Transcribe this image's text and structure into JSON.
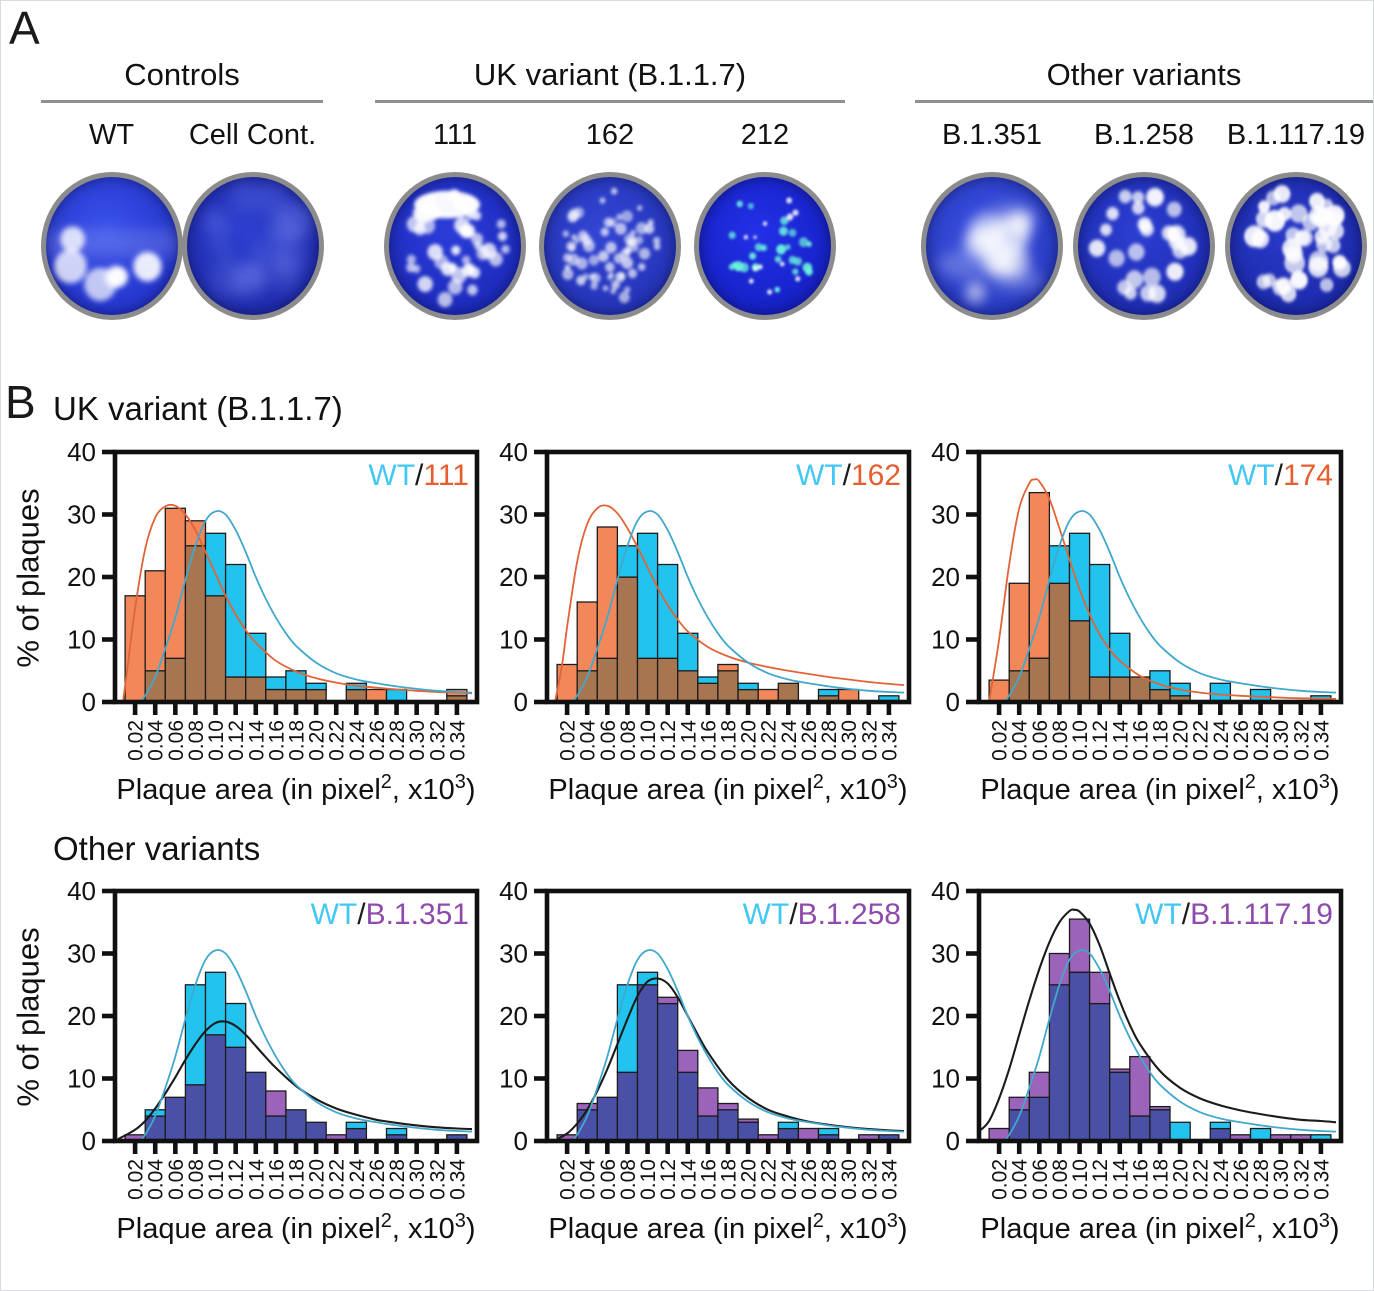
{
  "panel_a": {
    "label": "A",
    "groups": [
      {
        "title": "Controls",
        "dishes": [
          {
            "label": "WT",
            "visual": {
              "bg_center": "#3a52ea",
              "bg_edge": "#2030c8",
              "spots": {
                "count": 6,
                "rmin": 7,
                "rmax": 13,
                "color": "#ffffff",
                "opacity": 0.95,
                "blur": 2
              },
              "extra": "band"
            }
          },
          {
            "label": "Cell Cont.",
            "visual": {
              "bg_center": "#2e3fd0",
              "bg_edge": "#1c28a8",
              "spots": {
                "count": 0,
                "rmin": 0,
                "rmax": 0,
                "color": "#ffffff",
                "opacity": 0,
                "blur": 1
              },
              "extra": "mottle"
            }
          }
        ]
      },
      {
        "title": "UK variant (B.1.1.7)",
        "dishes": [
          {
            "label": "111",
            "visual": {
              "bg_center": "#2b3cd8",
              "bg_edge": "#1a28b8",
              "spots": {
                "count": 40,
                "rmin": 3,
                "rmax": 6,
                "color": "#ffffff",
                "opacity": 0.88,
                "blur": 1.4
              },
              "extra": "blotch"
            }
          },
          {
            "label": "162",
            "visual": {
              "bg_center": "#3346d4",
              "bg_edge": "#2231b4",
              "spots": {
                "count": 62,
                "rmin": 2,
                "rmax": 4.5,
                "color": "#ffffff",
                "opacity": 0.72,
                "blur": 1.2
              },
              "extra": null
            }
          },
          {
            "label": "212",
            "visual": {
              "bg_center": "#2230e8",
              "bg_edge": "#141fc0",
              "spots": {
                "count": 26,
                "rmin": 2,
                "rmax": 3.8,
                "color": "#6cf5de",
                "opacity": 0.95,
                "blur": 1
              },
              "extra": "cyanwhite"
            }
          }
        ]
      },
      {
        "title": "Other variants",
        "dishes": [
          {
            "label": "B.1.351",
            "visual": {
              "bg_center": "#3950e2",
              "bg_edge": "#2536bc",
              "spots": {
                "count": 9,
                "rmin": 7,
                "rmax": 15,
                "color": "#ffffff",
                "opacity": 0.75,
                "blur": 4.5
              },
              "extra": "haze"
            }
          },
          {
            "label": "B.1.258",
            "visual": {
              "bg_center": "#2c3ed2",
              "bg_edge": "#1c2aae",
              "spots": {
                "count": 26,
                "rmin": 4,
                "rmax": 7,
                "color": "#ffffff",
                "opacity": 0.93,
                "blur": 1.3
              },
              "extra": null
            }
          },
          {
            "label": "B.1.117.19",
            "visual": {
              "bg_center": "#2a3ac8",
              "bg_edge": "#1a28a8",
              "spots": {
                "count": 40,
                "rmin": 4.5,
                "rmax": 8,
                "color": "#ffffff",
                "opacity": 0.95,
                "blur": 1.1
              },
              "extra": null
            }
          }
        ]
      }
    ]
  },
  "panel_b": {
    "label": "B",
    "rows": [
      {
        "title": "UK variant (B.1.1.7)",
        "ylabel": "% of plaques"
      },
      {
        "title": "Other variants",
        "ylabel": "% of plaques"
      }
    ]
  },
  "chart_data": {
    "type": "bar",
    "subtype": "overlaid-histograms-with-fit-curves",
    "categories": [
      "0.02",
      "0.04",
      "0.06",
      "0.08",
      "0.10",
      "0.12",
      "0.14",
      "0.16",
      "0.18",
      "0.20",
      "0.22",
      "0.24",
      "0.26",
      "0.28",
      "0.30",
      "0.32",
      "0.34"
    ],
    "bin_width": 0.02,
    "x_range": [
      0,
      0.36
    ],
    "ylim": [
      0,
      40
    ],
    "yticks": [
      0,
      10,
      20,
      30,
      40
    ],
    "ylabel": "% of plaques",
    "xlabel_parts": {
      "pre": "Plaque area (in pixel",
      "sup1": "2",
      "mid": ", x10",
      "sup2": "3",
      "post": ")"
    },
    "grid": false,
    "legend_position": "top-right-inside",
    "wt": {
      "name": "WT",
      "bar_color": "#22C4EF",
      "curve_color": "#41A8CC",
      "legend_color": "#43C7F3",
      "values": [
        0,
        5,
        7,
        25,
        27,
        22,
        11,
        4,
        5,
        3,
        0,
        3,
        0,
        2,
        0,
        0,
        1
      ],
      "curve": [
        [
          0.025,
          0
        ],
        [
          0.03,
          1
        ],
        [
          0.04,
          4
        ],
        [
          0.05,
          8.5
        ],
        [
          0.06,
          13.5
        ],
        [
          0.07,
          19.5
        ],
        [
          0.08,
          25
        ],
        [
          0.09,
          29
        ],
        [
          0.1,
          30.5
        ],
        [
          0.11,
          30
        ],
        [
          0.12,
          27.5
        ],
        [
          0.13,
          24
        ],
        [
          0.14,
          20
        ],
        [
          0.15,
          16.5
        ],
        [
          0.16,
          13.5
        ],
        [
          0.17,
          11
        ],
        [
          0.18,
          9
        ],
        [
          0.2,
          6.3
        ],
        [
          0.22,
          4.6
        ],
        [
          0.24,
          3.6
        ],
        [
          0.26,
          3
        ],
        [
          0.28,
          2.5
        ],
        [
          0.3,
          2.1
        ],
        [
          0.32,
          1.8
        ],
        [
          0.34,
          1.6
        ],
        [
          0.355,
          1.5
        ]
      ]
    },
    "charts": [
      {
        "row": 0,
        "variant_name": "111",
        "legend": {
          "wt": "WT",
          "sep": "/",
          "variant": "111"
        },
        "legend_variant_color": "#E65D2E",
        "bar_color": "#F2885A",
        "overlap_color": "#A7754F",
        "curve_color": "#E06438",
        "values": [
          17,
          21,
          31,
          29,
          17,
          4,
          4,
          2,
          2,
          2,
          0,
          2,
          2,
          0,
          0,
          0,
          2
        ],
        "curve": [
          [
            0.008,
            0
          ],
          [
            0.012,
            5
          ],
          [
            0.02,
            15
          ],
          [
            0.03,
            24.5
          ],
          [
            0.04,
            29.5
          ],
          [
            0.05,
            31.3
          ],
          [
            0.06,
            31.4
          ],
          [
            0.07,
            30
          ],
          [
            0.08,
            27.5
          ],
          [
            0.09,
            24
          ],
          [
            0.1,
            20.5
          ],
          [
            0.11,
            17
          ],
          [
            0.12,
            14
          ],
          [
            0.13,
            11.5
          ],
          [
            0.14,
            9.5
          ],
          [
            0.16,
            6.6
          ],
          [
            0.18,
            4.9
          ],
          [
            0.2,
            3.8
          ],
          [
            0.22,
            3.1
          ],
          [
            0.24,
            2.6
          ],
          [
            0.26,
            2.3
          ],
          [
            0.28,
            2
          ],
          [
            0.3,
            1.8
          ],
          [
            0.32,
            1.6
          ],
          [
            0.34,
            1.5
          ],
          [
            0.355,
            1.4
          ]
        ]
      },
      {
        "row": 0,
        "variant_name": "162",
        "legend": {
          "wt": "WT",
          "sep": "/",
          "variant": "162"
        },
        "legend_variant_color": "#E65D2E",
        "bar_color": "#F2885A",
        "overlap_color": "#A7754F",
        "curve_color": "#E06438",
        "values": [
          6,
          16,
          28,
          20,
          7,
          7,
          5,
          3,
          6,
          2,
          2,
          3,
          0,
          1,
          2,
          0,
          0
        ],
        "curve": [
          [
            0.008,
            0
          ],
          [
            0.015,
            6
          ],
          [
            0.02,
            12
          ],
          [
            0.03,
            22.5
          ],
          [
            0.04,
            28.5
          ],
          [
            0.05,
            31
          ],
          [
            0.06,
            31.4
          ],
          [
            0.07,
            30.2
          ],
          [
            0.08,
            27.8
          ],
          [
            0.09,
            24.8
          ],
          [
            0.1,
            21.5
          ],
          [
            0.11,
            18.3
          ],
          [
            0.12,
            15.5
          ],
          [
            0.13,
            13.2
          ],
          [
            0.14,
            11.3
          ],
          [
            0.16,
            8.8
          ],
          [
            0.18,
            7.3
          ],
          [
            0.2,
            6.3
          ],
          [
            0.22,
            5.6
          ],
          [
            0.24,
            5
          ],
          [
            0.26,
            4.5
          ],
          [
            0.28,
            4
          ],
          [
            0.3,
            3.6
          ],
          [
            0.32,
            3.2
          ],
          [
            0.34,
            2.9
          ],
          [
            0.355,
            2.7
          ]
        ]
      },
      {
        "row": 0,
        "variant_name": "174",
        "legend": {
          "wt": "WT",
          "sep": "/",
          "variant": "174"
        },
        "legend_variant_color": "#E65D2E",
        "bar_color": "#F2885A",
        "overlap_color": "#A7754F",
        "curve_color": "#E06438",
        "values": [
          3.5,
          19,
          33.5,
          19,
          13,
          4,
          4,
          4,
          2,
          1,
          0,
          0,
          0,
          0,
          0,
          0,
          0
        ],
        "curve": [
          [
            0.01,
            0
          ],
          [
            0.02,
            10
          ],
          [
            0.03,
            22
          ],
          [
            0.04,
            31
          ],
          [
            0.05,
            35
          ],
          [
            0.055,
            35.6
          ],
          [
            0.06,
            35.3
          ],
          [
            0.07,
            32.5
          ],
          [
            0.08,
            27.8
          ],
          [
            0.09,
            22.8
          ],
          [
            0.1,
            18
          ],
          [
            0.11,
            14
          ],
          [
            0.12,
            10.8
          ],
          [
            0.13,
            8.4
          ],
          [
            0.14,
            6.6
          ],
          [
            0.16,
            4.2
          ],
          [
            0.18,
            2.8
          ],
          [
            0.2,
            2
          ],
          [
            0.22,
            1.5
          ],
          [
            0.24,
            1.2
          ],
          [
            0.26,
            1
          ],
          [
            0.28,
            0.85
          ],
          [
            0.3,
            0.7
          ],
          [
            0.32,
            0.6
          ],
          [
            0.34,
            0.55
          ],
          [
            0.355,
            0.5
          ]
        ]
      },
      {
        "row": 1,
        "variant_name": "B.1.351",
        "legend": {
          "wt": "WT",
          "sep": "/",
          "variant": "B.1.351"
        },
        "legend_variant_color": "#8E4BAD",
        "bar_color": "#9C63BB",
        "overlap_color": "#4B50A7",
        "curve_color": "#1b1b1b",
        "values": [
          1,
          4,
          7,
          9,
          17,
          15,
          11,
          8,
          5,
          3,
          1,
          2,
          0,
          1,
          0,
          0,
          1
        ],
        "curve": [
          [
            0.003,
            0.3
          ],
          [
            0.02,
            1.8
          ],
          [
            0.03,
            3.2
          ],
          [
            0.04,
            5.2
          ],
          [
            0.05,
            7.6
          ],
          [
            0.06,
            10.2
          ],
          [
            0.07,
            13
          ],
          [
            0.08,
            15.5
          ],
          [
            0.09,
            17.6
          ],
          [
            0.1,
            18.9
          ],
          [
            0.11,
            19.1
          ],
          [
            0.12,
            18.4
          ],
          [
            0.13,
            17
          ],
          [
            0.14,
            15.2
          ],
          [
            0.15,
            13.4
          ],
          [
            0.16,
            11.7
          ],
          [
            0.18,
            8.8
          ],
          [
            0.2,
            6.7
          ],
          [
            0.22,
            5.2
          ],
          [
            0.24,
            4.2
          ],
          [
            0.26,
            3.4
          ],
          [
            0.28,
            2.9
          ],
          [
            0.3,
            2.5
          ],
          [
            0.32,
            2.2
          ],
          [
            0.34,
            2
          ],
          [
            0.355,
            1.9
          ]
        ]
      },
      {
        "row": 1,
        "variant_name": "B.1.258",
        "legend": {
          "wt": "WT",
          "sep": "/",
          "variant": "B.1.258"
        },
        "legend_variant_color": "#8E4BAD",
        "bar_color": "#9C63BB",
        "overlap_color": "#4B50A7",
        "curve_color": "#1b1b1b",
        "values": [
          1,
          6,
          7,
          11,
          25,
          23,
          14.5,
          8.5,
          6,
          3.5,
          1,
          2,
          2,
          1,
          0,
          1,
          1
        ],
        "curve": [
          [
            0.01,
            0.3
          ],
          [
            0.02,
            1.2
          ],
          [
            0.03,
            2.8
          ],
          [
            0.04,
            5
          ],
          [
            0.05,
            8
          ],
          [
            0.06,
            11.5
          ],
          [
            0.07,
            15.5
          ],
          [
            0.08,
            19.5
          ],
          [
            0.09,
            23.2
          ],
          [
            0.1,
            25.5
          ],
          [
            0.11,
            26
          ],
          [
            0.12,
            25.2
          ],
          [
            0.13,
            23
          ],
          [
            0.14,
            20
          ],
          [
            0.15,
            17
          ],
          [
            0.16,
            14.2
          ],
          [
            0.18,
            9.8
          ],
          [
            0.2,
            6.9
          ],
          [
            0.22,
            5
          ],
          [
            0.24,
            3.9
          ],
          [
            0.26,
            3.1
          ],
          [
            0.28,
            2.6
          ],
          [
            0.3,
            2.2
          ],
          [
            0.32,
            1.9
          ],
          [
            0.34,
            1.7
          ],
          [
            0.355,
            1.6
          ]
        ]
      },
      {
        "row": 1,
        "variant_name": "B.1.117.19",
        "legend": {
          "wt": "WT",
          "sep": "/",
          "variant": "B.1.117.19"
        },
        "legend_variant_color": "#8E4BAD",
        "bar_color": "#9C63BB",
        "overlap_color": "#4B50A7",
        "curve_color": "#1b1b1b",
        "values": [
          2,
          7,
          11,
          30,
          35.5,
          27,
          11.5,
          13.5,
          5.5,
          0,
          0,
          2,
          1,
          0,
          1,
          1,
          0
        ],
        "curve": [
          [
            0.002,
            1.8
          ],
          [
            0.01,
            3.2
          ],
          [
            0.02,
            6.8
          ],
          [
            0.03,
            11.5
          ],
          [
            0.04,
            17
          ],
          [
            0.05,
            22.5
          ],
          [
            0.06,
            27.5
          ],
          [
            0.07,
            31.8
          ],
          [
            0.08,
            35
          ],
          [
            0.09,
            36.8
          ],
          [
            0.095,
            37
          ],
          [
            0.1,
            36.7
          ],
          [
            0.11,
            34.8
          ],
          [
            0.12,
            31.3
          ],
          [
            0.13,
            26.8
          ],
          [
            0.14,
            22.4
          ],
          [
            0.15,
            18.6
          ],
          [
            0.16,
            15.5
          ],
          [
            0.18,
            11.2
          ],
          [
            0.2,
            8.5
          ],
          [
            0.22,
            6.8
          ],
          [
            0.24,
            5.7
          ],
          [
            0.26,
            4.9
          ],
          [
            0.28,
            4.3
          ],
          [
            0.3,
            3.8
          ],
          [
            0.32,
            3.4
          ],
          [
            0.34,
            3.2
          ],
          [
            0.355,
            3
          ]
        ]
      }
    ]
  },
  "colors": {
    "frame": "#101010",
    "bar_stroke": "#1c1c1c",
    "legend_slash": "#1b1b1b",
    "dish_ring": "#8c8c8c",
    "group_rule": "#8f8f8f"
  }
}
